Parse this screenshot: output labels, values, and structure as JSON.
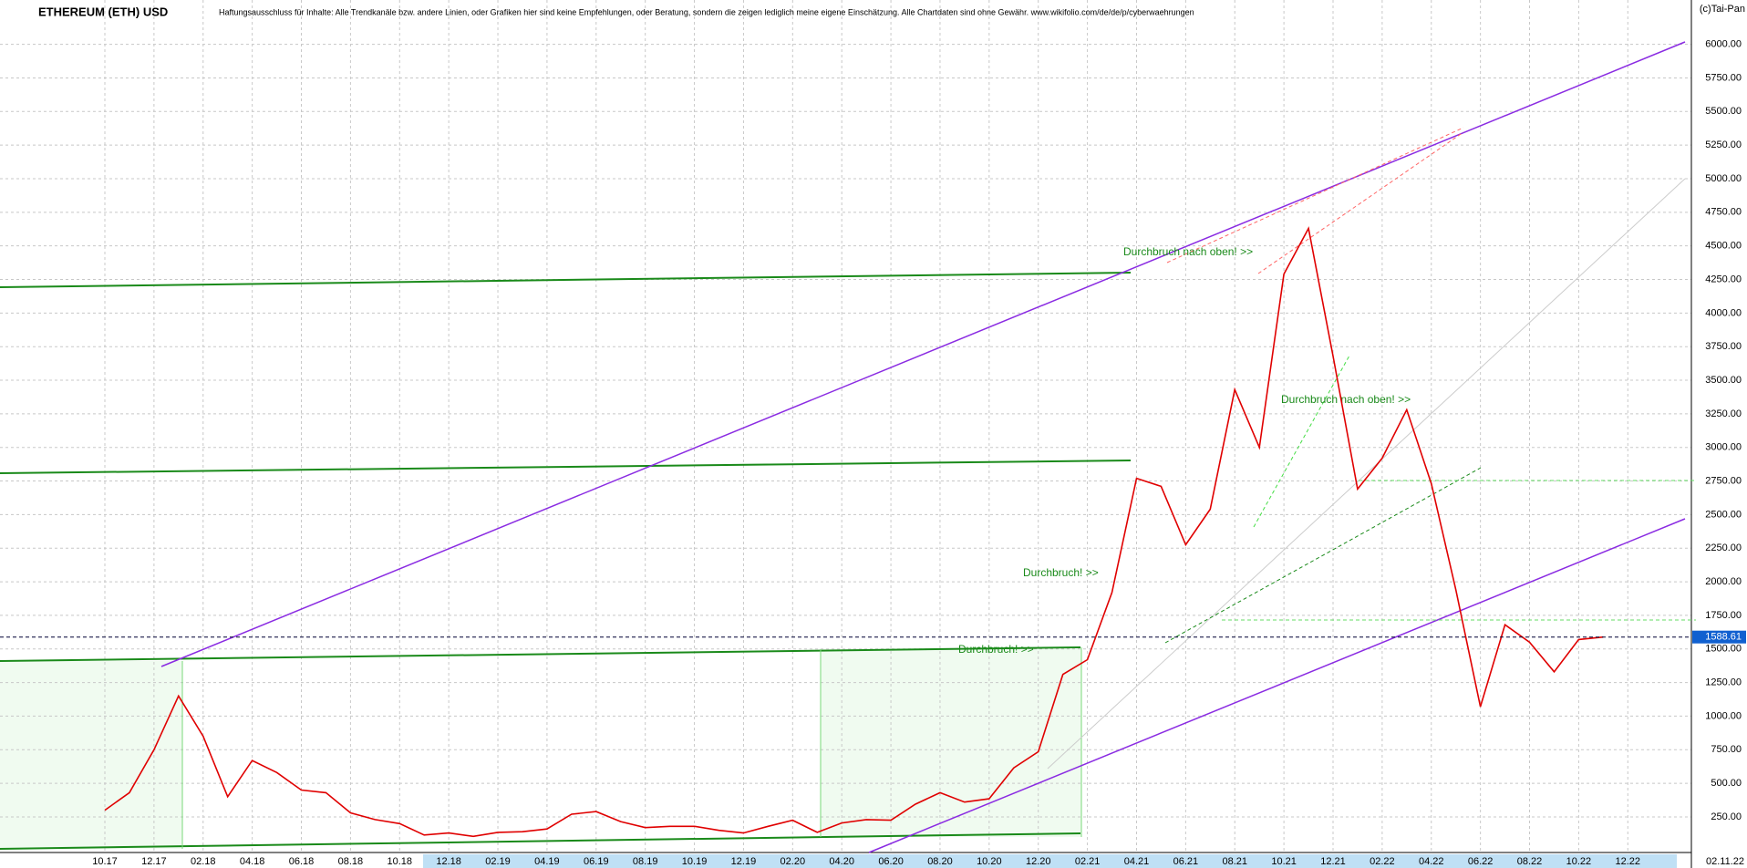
{
  "chart_data": {
    "type": "line",
    "title": "ETHEREUM (ETH) USD",
    "subtitle": "Haftungsausschluss für Inhalte: Alle Trendkanäle bzw. andere Linien, oder Grafiken hier sind keine Empfehlungen, oder Beratung, sondern die zeigen lediglich meine eigene Einschätzung. Alle Chartdaten sind ohne Gewähr.  www.wikifolio.com/de/de/p/cyberwaehrungen",
    "copyright": "(c)Tai-Pan",
    "last_date": "02.11.22",
    "annotations": [
      "Durchbruch nach oben! >>",
      "Durchbruch nach oben! >>",
      "Durchbruch! >>",
      "Durchbruch! >>"
    ],
    "color": "#e00000",
    "categories": [
      "10.17",
      null,
      "12.17",
      null,
      "02.18",
      null,
      "04.18",
      null,
      "06.18",
      null,
      "08.18",
      null,
      "10.18",
      null,
      "12.18",
      null,
      "02.19",
      null,
      "04.19",
      null,
      "06.19",
      null,
      "08.19",
      null,
      "10.19",
      null,
      "12.19",
      null,
      "02.20",
      null,
      "04.20",
      null,
      "06.20",
      null,
      "08.20",
      null,
      "10.20",
      null,
      "12.20",
      null,
      "02.21",
      null,
      "04.21",
      null,
      "06.21",
      null,
      "08.21",
      null,
      "10.21",
      null,
      "12.21",
      null,
      "02.22",
      null,
      "04.22",
      null,
      "06.22",
      null,
      "08.22",
      null,
      "10.22",
      null,
      "12.22"
    ],
    "values": [
      300,
      430,
      750,
      1150,
      850,
      400,
      670,
      580,
      450,
      430,
      280,
      230,
      200,
      115,
      130,
      105,
      135,
      140,
      160,
      270,
      290,
      215,
      170,
      180,
      180,
      150,
      130,
      180,
      225,
      135,
      205,
      230,
      225,
      345,
      430,
      360,
      385,
      615,
      735,
      1310,
      1420,
      1920,
      2770,
      2710,
      2275,
      2540,
      3430,
      3000,
      4290,
      4630,
      3680,
      2690,
      2920,
      3280,
      2730,
      1940,
      1070,
      1680,
      1550,
      1330,
      1570,
      1588.61,
      null
    ],
    "ylim": [
      -15,
      6330
    ],
    "yticks": [
      {
        "value": 250,
        "label": "250.00"
      },
      {
        "value": 500,
        "label": "500.00"
      },
      {
        "value": 750,
        "label": "750.00"
      },
      {
        "value": 1000,
        "label": "1000.00"
      },
      {
        "value": 1250,
        "label": "1250.00"
      },
      {
        "value": 1500,
        "label": "1500.00"
      },
      {
        "value": 1750,
        "label": "1750.00"
      },
      {
        "value": 2000,
        "label": "2000.00"
      },
      {
        "value": 2250,
        "label": "2250.00"
      },
      {
        "value": 2500,
        "label": "2500.00"
      },
      {
        "value": 2750,
        "label": "2750.00"
      },
      {
        "value": 3000,
        "label": "3000.00"
      },
      {
        "value": 3250,
        "label": "3250.00"
      },
      {
        "value": 3500,
        "label": "3500.00"
      },
      {
        "value": 3750,
        "label": "3750.00"
      },
      {
        "value": 4000,
        "label": "4000.00"
      },
      {
        "value": 4250,
        "label": "4250.00"
      },
      {
        "value": 4500,
        "label": "4500.00"
      },
      {
        "value": 4750,
        "label": "4750.00"
      },
      {
        "value": 5000,
        "label": "5000.00"
      },
      {
        "value": 5250,
        "label": "5250.00"
      },
      {
        "value": 5500,
        "label": "5500.00"
      },
      {
        "value": 5750,
        "label": "5750.00"
      },
      {
        "value": 6000,
        "label": "6000.00"
      }
    ],
    "grid": true
  }
}
